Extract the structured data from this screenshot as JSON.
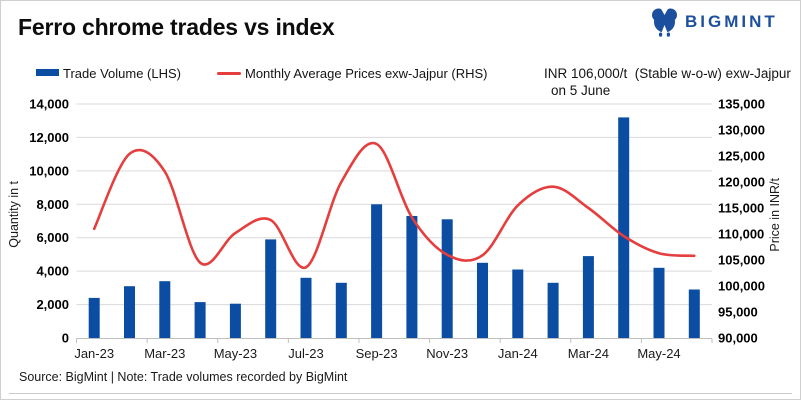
{
  "header": {
    "title": "Ferro chrome trades vs index"
  },
  "logo": {
    "text": "BIGMINT",
    "color": "#1d4f9f"
  },
  "legend": {
    "bar": {
      "label": "Trade Volume (LHS)"
    },
    "line": {
      "label": "Monthly Average Prices exw-Jajpur (RHS)"
    }
  },
  "annotation": {
    "line1": "INR 106,000/t  (Stable w-o-w) exw-Jajpur",
    "line2": "on 5 June"
  },
  "footer": {
    "source": "Source: BigMint | Note: Trade volumes recorded by BigMint"
  },
  "chart_data": {
    "type": "bar+line",
    "title": "Ferro chrome trades vs index",
    "categories": [
      "Jan-23",
      "Feb-23",
      "Mar-23",
      "Apr-23",
      "May-23",
      "Jun-23",
      "Jul-23",
      "Aug-23",
      "Sep-23",
      "Oct-23",
      "Nov-23",
      "Dec-23",
      "Jan-24",
      "Feb-24",
      "Mar-24",
      "Apr-24",
      "May-24",
      "Jun-24"
    ],
    "series": [
      {
        "name": "Trade Volume (LHS)",
        "type": "bar",
        "axis": "left",
        "color": "#0b4da2",
        "values": [
          2400,
          3100,
          3400,
          2150,
          2050,
          5900,
          3600,
          3300,
          8000,
          7300,
          7100,
          4500,
          4100,
          3300,
          4900,
          13200,
          4200,
          2900
        ]
      },
      {
        "name": "Monthly Average Prices exw-Jajpur (RHS)",
        "type": "line",
        "axis": "right",
        "color": "#e53e3e",
        "values": [
          111000,
          125400,
          122000,
          104500,
          110200,
          112700,
          103600,
          120000,
          127300,
          113200,
          106000,
          105900,
          115500,
          119100,
          115000,
          109600,
          106300,
          105800
        ]
      }
    ],
    "x_tick_labels": [
      "Jan-23",
      "Mar-23",
      "May-23",
      "Jul-23",
      "Sep-23",
      "Nov-23",
      "Jan-24",
      "Mar-24",
      "May-24"
    ],
    "left_axis": {
      "title": "Quantity in t",
      "min": 0,
      "max": 14000,
      "step": 2000
    },
    "right_axis": {
      "title": "Price in INR/t",
      "min": 90000,
      "max": 135000,
      "step": 5000
    },
    "ylim_left": [
      0,
      14000
    ],
    "ylim_right": [
      90000,
      135000
    ],
    "ticks_left": [
      "0",
      "2,000",
      "4,000",
      "6,000",
      "8,000",
      "10,000",
      "12,000",
      "14,000"
    ],
    "ticks_right": [
      "90,000",
      "95,000",
      "100,000",
      "105,000",
      "110,000",
      "115,000",
      "120,000",
      "125,000",
      "130,000",
      "135,000"
    ],
    "grid": "horizontal",
    "grid_color": "#d9d9d9",
    "axis_color": "#bfbfbf",
    "legend_position": "top"
  }
}
